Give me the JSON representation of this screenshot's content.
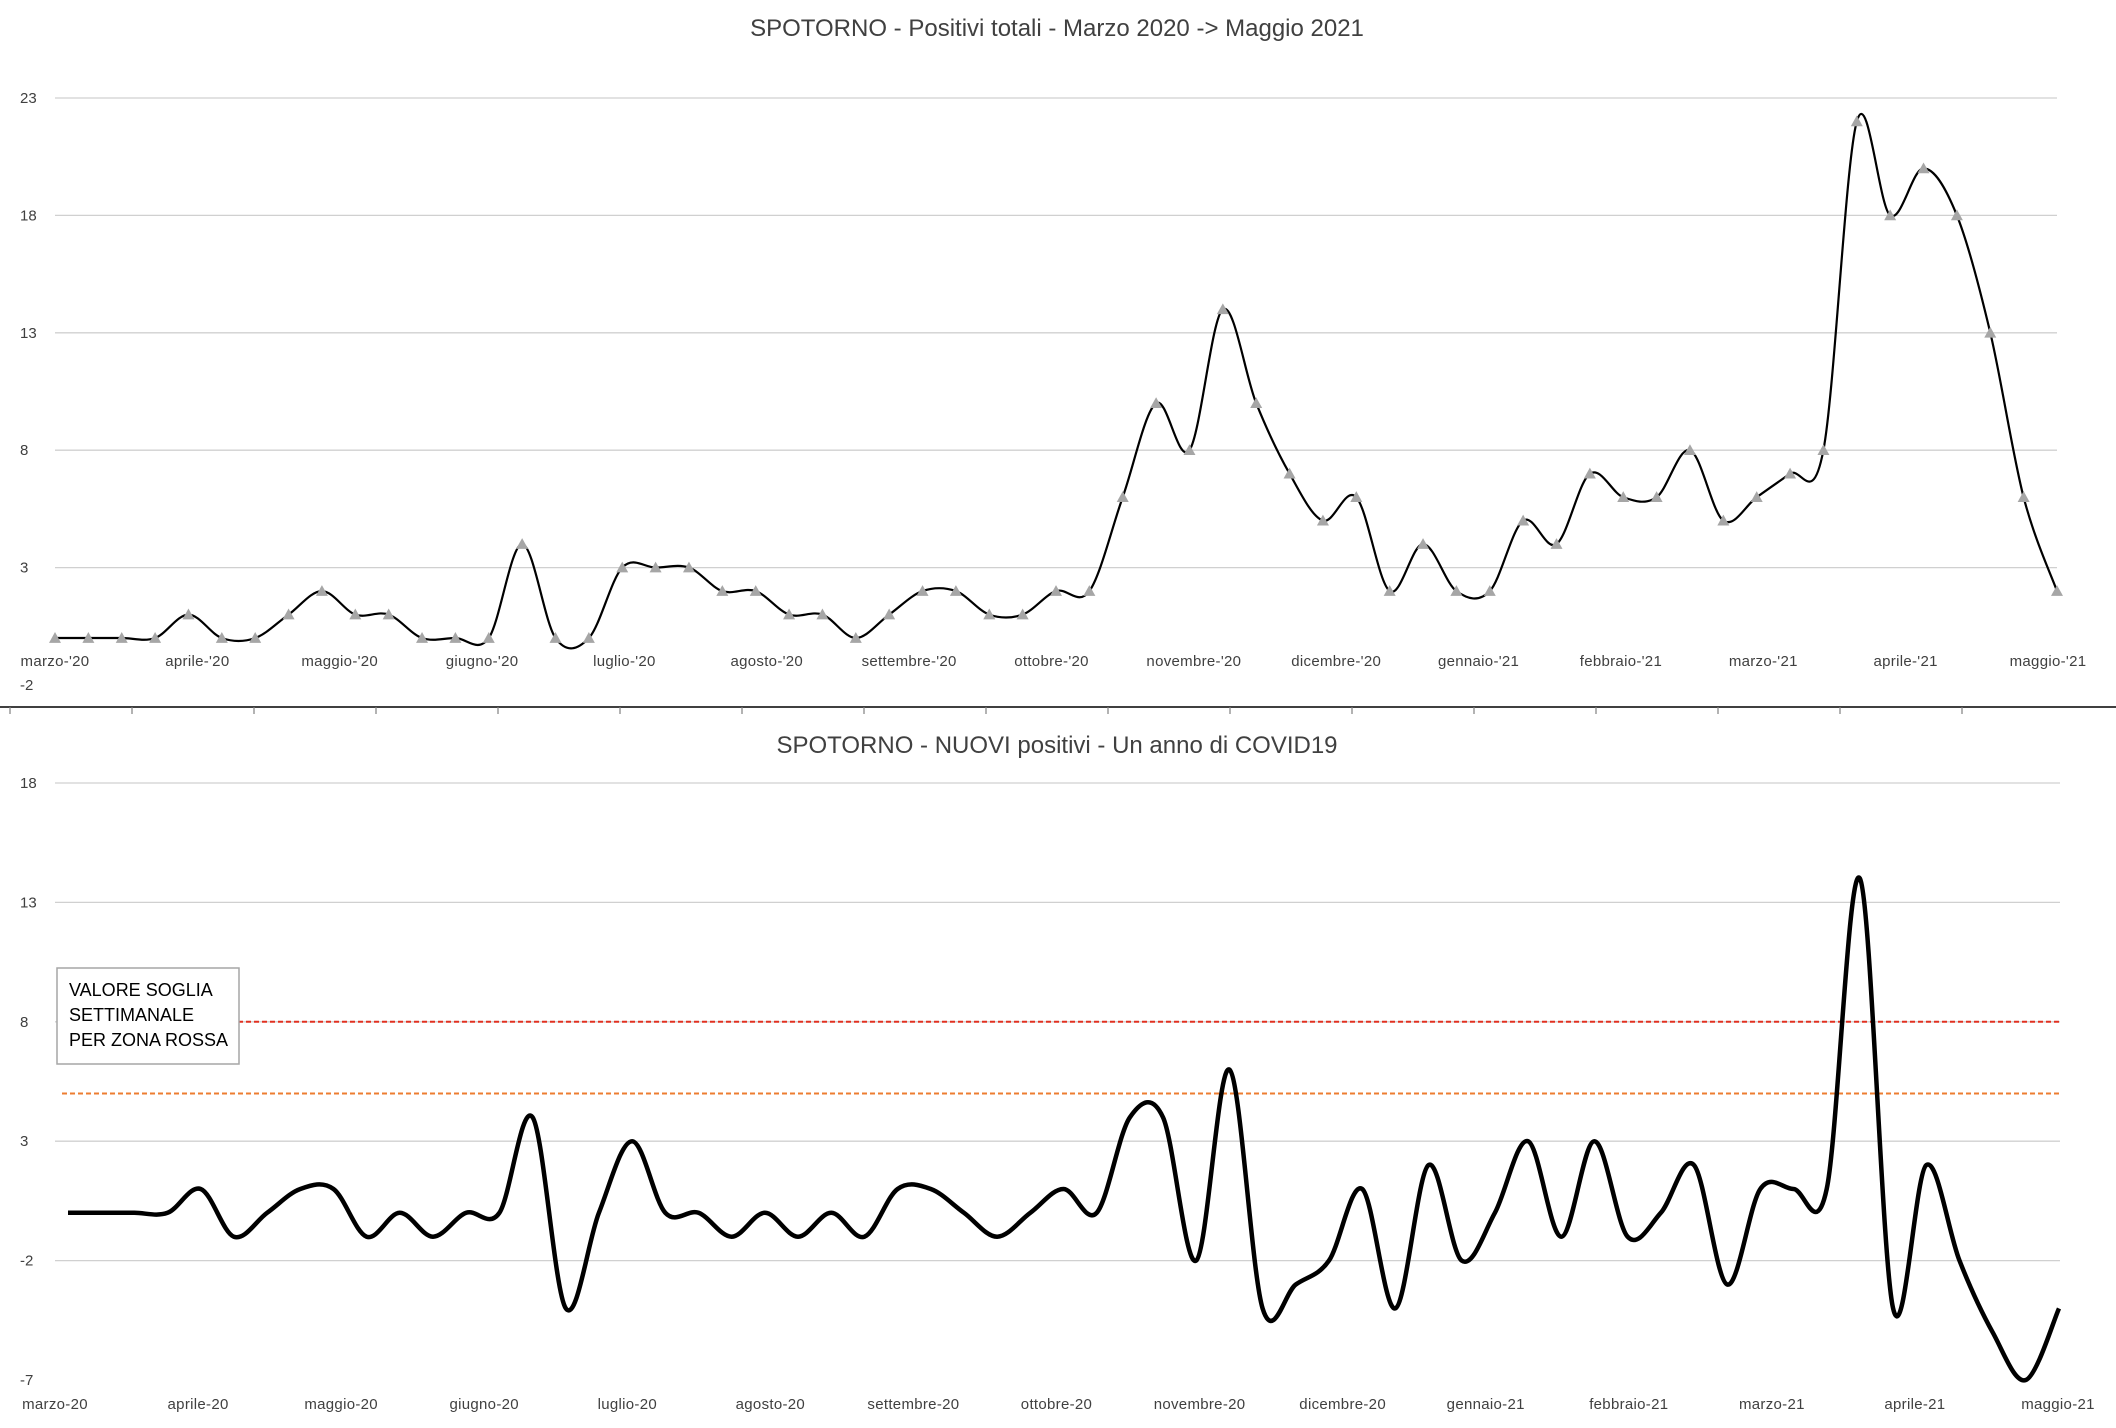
{
  "chart_data": [
    {
      "type": "line",
      "title": "SPOTORNO - Positivi totali - Marzo 2020 -> Maggio 2021",
      "xlabel": "",
      "ylabel": "",
      "ylim": [
        -2,
        23
      ],
      "y_ticks": [
        "23",
        "18",
        "13",
        "8",
        "3",
        "-2"
      ],
      "x_tick_labels": [
        "marzo-'20",
        "aprile-'20",
        "maggio-'20",
        "giugno-'20",
        "luglio-'20",
        "agosto-'20",
        "settembre-'20",
        "ottobre-'20",
        "novembre-'20",
        "dicembre-'20",
        "gennaio-'21",
        "febbraio-'21",
        "marzo-'21",
        "aprile-'21",
        "maggio-'21"
      ],
      "grid": true,
      "marker": "triangle",
      "line_color": "#000000",
      "marker_color": "#a6a6a6",
      "series": [
        {
          "values": [
            0,
            0,
            0,
            0,
            1,
            0,
            0,
            1,
            2,
            1,
            1,
            0,
            0,
            0,
            4,
            0,
            0,
            3,
            3,
            3,
            2,
            2,
            1,
            1,
            0,
            1,
            2,
            2,
            1,
            1,
            2,
            2,
            6,
            10,
            8,
            14,
            10,
            7,
            5,
            6,
            2,
            4,
            2,
            2,
            5,
            4,
            7,
            6,
            6,
            8,
            5,
            6,
            7,
            8,
            22,
            18,
            20,
            18,
            13,
            6,
            2
          ]
        }
      ]
    },
    {
      "type": "line",
      "title": "SPOTORNO - NUOVI positivi - Un anno di COVID19",
      "xlabel": "",
      "ylabel": "",
      "ylim": [
        -7,
        18
      ],
      "y_ticks": [
        "18",
        "13",
        "8",
        "3",
        "-2",
        "-7"
      ],
      "x_tick_labels": [
        "marzo-20",
        "aprile-20",
        "maggio-20",
        "giugno-20",
        "luglio-20",
        "agosto-20",
        "settembre-20",
        "ottobre-20",
        "novembre-20",
        "dicembre-20",
        "gennaio-21",
        "febbraio-21",
        "marzo-21",
        "aprile-21",
        "maggio-21"
      ],
      "grid": true,
      "line_color": "#000000",
      "thresholds": [
        {
          "value": 8,
          "color": "#e03020"
        },
        {
          "value": 5,
          "color": "#ed7d31"
        }
      ],
      "annotation": [
        "VALORE SOGLIA",
        "SETTIMANALE",
        "PER ZONA ROSSA"
      ],
      "series": [
        {
          "values": [
            0,
            0,
            0,
            0,
            1,
            -1,
            0,
            1,
            1,
            -1,
            0,
            -1,
            0,
            0,
            4,
            -4,
            0,
            3,
            0,
            0,
            -1,
            0,
            -1,
            0,
            -1,
            1,
            1,
            0,
            -1,
            0,
            1,
            0,
            4,
            4,
            -2,
            6,
            -4,
            -3,
            -2,
            1,
            -4,
            2,
            -2,
            0,
            3,
            -1,
            3,
            -1,
            0,
            2,
            -3,
            1,
            1,
            1,
            14,
            -4,
            2,
            -2,
            -5,
            -7,
            -4
          ]
        }
      ]
    }
  ]
}
